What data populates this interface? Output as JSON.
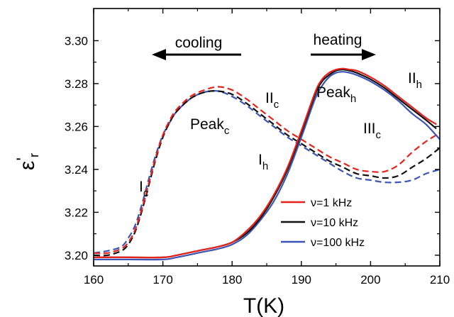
{
  "chart_data": {
    "type": "line",
    "xlabel": "T(K)",
    "ylabel": {
      "main": "ε",
      "prime": "'",
      "sub": "r"
    },
    "xlim": [
      160,
      210
    ],
    "ylim": [
      3.195,
      3.315
    ],
    "x_ticks": [
      160,
      170,
      180,
      190,
      200,
      210
    ],
    "x_tick_labels": [
      "160",
      "170",
      "180",
      "190",
      "200",
      "210"
    ],
    "y_ticks": [
      3.2,
      3.22,
      3.24,
      3.26,
      3.28,
      3.3
    ],
    "y_tick_labels": [
      "3.20",
      "3.22",
      "3.24",
      "3.26",
      "3.28",
      "3.30"
    ],
    "legend_position": "lower-right",
    "series": [
      {
        "name": "ν=1 kHz",
        "color": "#e8221b",
        "dashed": false,
        "x": [
          160,
          165,
          170,
          172,
          175,
          178,
          180,
          182,
          184,
          186,
          188,
          190,
          192,
          193,
          194,
          195,
          196,
          197,
          198,
          200,
          202,
          204,
          206,
          208,
          209.5
        ],
        "y": [
          3.199,
          3.199,
          3.199,
          3.2,
          3.202,
          3.204,
          3.206,
          3.211,
          3.218,
          3.228,
          3.241,
          3.258,
          3.276,
          3.282,
          3.285,
          3.2865,
          3.287,
          3.2865,
          3.286,
          3.283,
          3.279,
          3.274,
          3.269,
          3.264,
          3.261
        ]
      },
      {
        "name": "ν=10 kHz",
        "color": "#111111",
        "dashed": false,
        "x": [
          160,
          165,
          170,
          172,
          175,
          178,
          180,
          182,
          184,
          186,
          188,
          190,
          192,
          193,
          194,
          195,
          196,
          197,
          198,
          200,
          202,
          204,
          206,
          208,
          209.5
        ],
        "y": [
          3.199,
          3.199,
          3.199,
          3.2,
          3.202,
          3.204,
          3.206,
          3.21,
          3.217,
          3.227,
          3.24,
          3.257,
          3.275,
          3.281,
          3.284,
          3.286,
          3.2865,
          3.286,
          3.285,
          3.282,
          3.278,
          3.273,
          3.268,
          3.263,
          3.259
        ]
      },
      {
        "name": "ν=100 kHz",
        "color": "#3a55b4",
        "dashed": false,
        "x": [
          160,
          165,
          170,
          172,
          175,
          178,
          180,
          182,
          184,
          186,
          188,
          190,
          192,
          193,
          194,
          195,
          196,
          197,
          198,
          200,
          202,
          204,
          206,
          208,
          210
        ],
        "y": [
          3.198,
          3.198,
          3.198,
          3.199,
          3.201,
          3.203,
          3.205,
          3.209,
          3.216,
          3.225,
          3.238,
          3.255,
          3.273,
          3.279,
          3.283,
          3.285,
          3.2855,
          3.285,
          3.284,
          3.281,
          3.277,
          3.272,
          3.266,
          3.261,
          3.254
        ]
      },
      {
        "color": "#e8221b",
        "dashed": true,
        "x": [
          160,
          162,
          164,
          165,
          166,
          167,
          168,
          169,
          170,
          171,
          172,
          174,
          176,
          178,
          180,
          182,
          184,
          186,
          188,
          190,
          192,
          194,
          196,
          198,
          200,
          202,
          204,
          206,
          208,
          210
        ],
        "y": [
          3.201,
          3.201,
          3.203,
          3.206,
          3.212,
          3.222,
          3.234,
          3.246,
          3.256,
          3.263,
          3.268,
          3.274,
          3.277,
          3.2785,
          3.277,
          3.273,
          3.268,
          3.263,
          3.258,
          3.254,
          3.25,
          3.246,
          3.243,
          3.24,
          3.239,
          3.239,
          3.242,
          3.248,
          3.253,
          3.257
        ]
      },
      {
        "color": "#111111",
        "dashed": true,
        "x": [
          160,
          162,
          164,
          165,
          166,
          167,
          168,
          169,
          170,
          171,
          172,
          174,
          176,
          178,
          180,
          182,
          184,
          186,
          188,
          190,
          192,
          194,
          196,
          198,
          200,
          202,
          204,
          206,
          208,
          210
        ],
        "y": [
          3.2,
          3.2,
          3.202,
          3.205,
          3.211,
          3.221,
          3.233,
          3.245,
          3.255,
          3.262,
          3.267,
          3.273,
          3.276,
          3.2765,
          3.275,
          3.271,
          3.266,
          3.261,
          3.256,
          3.252,
          3.248,
          3.244,
          3.241,
          3.238,
          3.237,
          3.236,
          3.237,
          3.241,
          3.245,
          3.25
        ]
      },
      {
        "color": "#3a55b4",
        "dashed": true,
        "x": [
          160,
          162,
          164,
          165,
          166,
          167,
          168,
          169,
          170,
          171,
          172,
          174,
          176,
          178,
          180,
          182,
          184,
          186,
          188,
          190,
          192,
          194,
          196,
          198,
          200,
          202,
          204,
          206,
          208,
          210
        ],
        "y": [
          3.201,
          3.202,
          3.204,
          3.208,
          3.214,
          3.224,
          3.236,
          3.247,
          3.256,
          3.262,
          3.267,
          3.273,
          3.276,
          3.2765,
          3.274,
          3.27,
          3.265,
          3.26,
          3.255,
          3.251,
          3.247,
          3.243,
          3.239,
          3.236,
          3.235,
          3.234,
          3.234,
          3.235,
          3.238,
          3.24
        ]
      }
    ],
    "annotations": [
      {
        "name": "cooling",
        "text": "cooling",
        "sub": ""
      },
      {
        "name": "heating",
        "text": "heating",
        "sub": ""
      },
      {
        "name": "peak-c",
        "text": "Peak",
        "sub": "c"
      },
      {
        "name": "peak-h",
        "text": "Peak",
        "sub": "h"
      },
      {
        "name": "i-c",
        "text": "I",
        "sub": "c"
      },
      {
        "name": "i-h",
        "text": "I",
        "sub": "h"
      },
      {
        "name": "ii-c",
        "text": "II",
        "sub": "c"
      },
      {
        "name": "ii-h",
        "text": "II",
        "sub": "h"
      },
      {
        "name": "iii-c",
        "text": "III",
        "sub": "c"
      }
    ]
  }
}
